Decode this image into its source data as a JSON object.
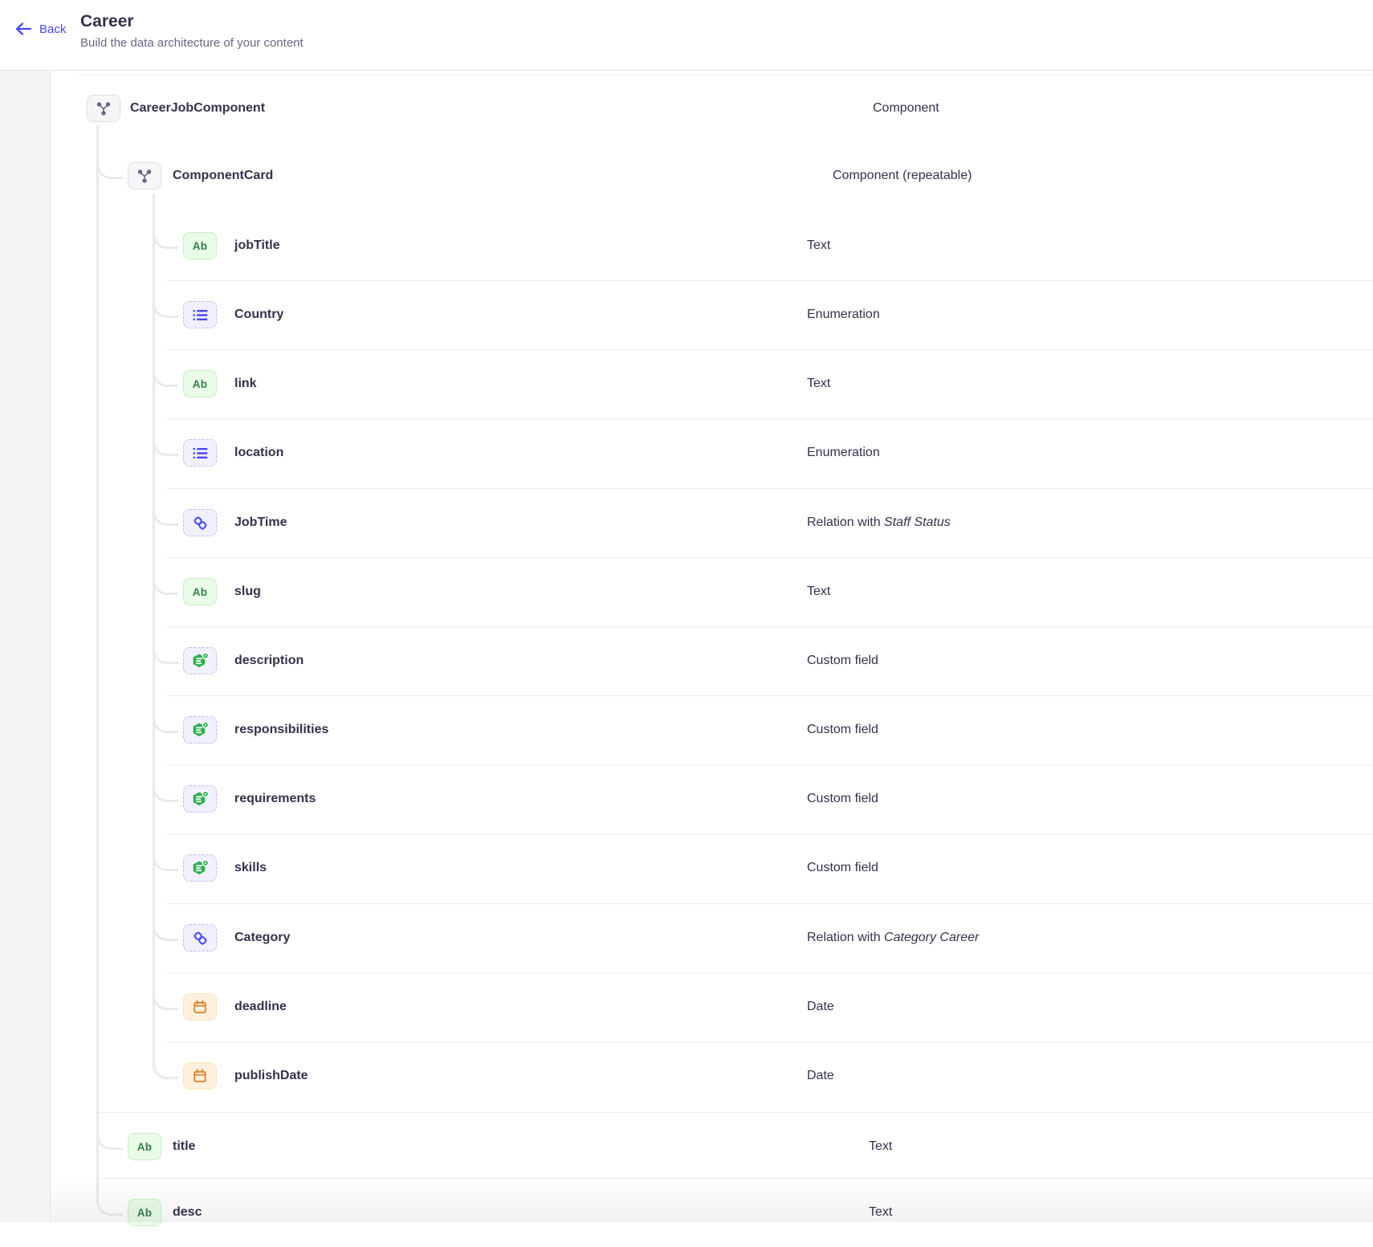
{
  "header": {
    "back": "Back",
    "title": "Career",
    "subtitle": "Build the data architecture of your content"
  },
  "colors": {
    "accent": "#4945ff",
    "text_field_green": "#328048",
    "custom_field_green": "#2cb24a",
    "date_field_orange": "#d9822f",
    "component_glyph_gray": "#666687"
  },
  "icon_labels": {
    "text": "Ab"
  },
  "rows": [
    {
      "level": 1,
      "kind": "component",
      "name": "CareerJobComponent",
      "type": "Component"
    },
    {
      "level": 2,
      "kind": "component",
      "name": "ComponentCard",
      "type": "Component (repeatable)"
    },
    {
      "level": 3,
      "kind": "text",
      "name": "jobTitle",
      "type": "Text"
    },
    {
      "level": 3,
      "kind": "enumeration",
      "name": "Country",
      "type": "Enumeration"
    },
    {
      "level": 3,
      "kind": "text",
      "name": "link",
      "type": "Text"
    },
    {
      "level": 3,
      "kind": "enumeration",
      "name": "location",
      "type": "Enumeration"
    },
    {
      "level": 3,
      "kind": "relation",
      "name": "JobTime",
      "type": "Relation with",
      "type_ref": "Staff Status"
    },
    {
      "level": 3,
      "kind": "text",
      "name": "slug",
      "type": "Text"
    },
    {
      "level": 3,
      "kind": "custom-field",
      "name": "description",
      "type": "Custom field"
    },
    {
      "level": 3,
      "kind": "custom-field",
      "name": "responsibilities",
      "type": "Custom field"
    },
    {
      "level": 3,
      "kind": "custom-field",
      "name": "requirements",
      "type": "Custom field"
    },
    {
      "level": 3,
      "kind": "custom-field",
      "name": "skills",
      "type": "Custom field"
    },
    {
      "level": 3,
      "kind": "relation",
      "name": "Category",
      "type": "Relation with",
      "type_ref": "Category Career"
    },
    {
      "level": 3,
      "kind": "date",
      "name": "deadline",
      "type": "Date"
    },
    {
      "level": 3,
      "kind": "date",
      "name": "publishDate",
      "type": "Date"
    },
    {
      "level": 2,
      "kind": "text",
      "name": "title",
      "type": "Text"
    },
    {
      "level": 2,
      "kind": "text",
      "name": "desc",
      "type": "Text"
    }
  ]
}
